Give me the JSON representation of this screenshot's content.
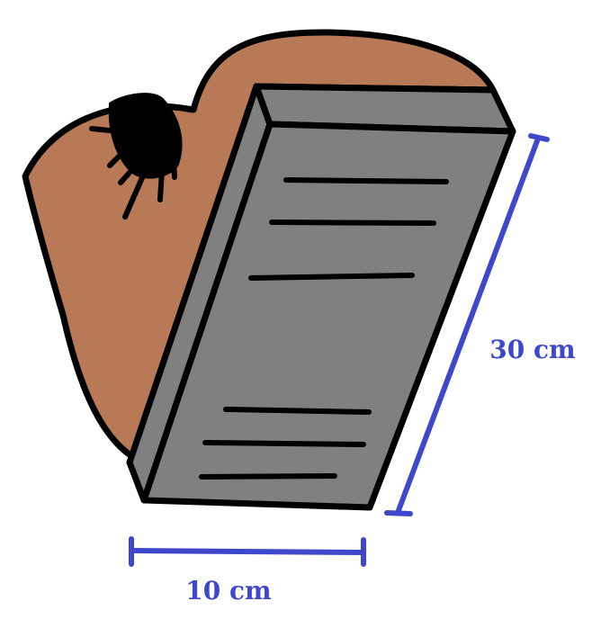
{
  "colors": {
    "background": "#ffffff",
    "outline": "#000000",
    "bag": "#b87a56",
    "bag_stain": "#000000",
    "block_face": "#808080",
    "block_top": "#808080",
    "block_side": "#808080",
    "dimension": "#3f48cc"
  },
  "labels": {
    "width": "10 cm",
    "length": "30 cm"
  },
  "elements": {
    "bag": "brown-sack",
    "block": "grey-engraved-tablet",
    "stain": "black-splatter"
  }
}
